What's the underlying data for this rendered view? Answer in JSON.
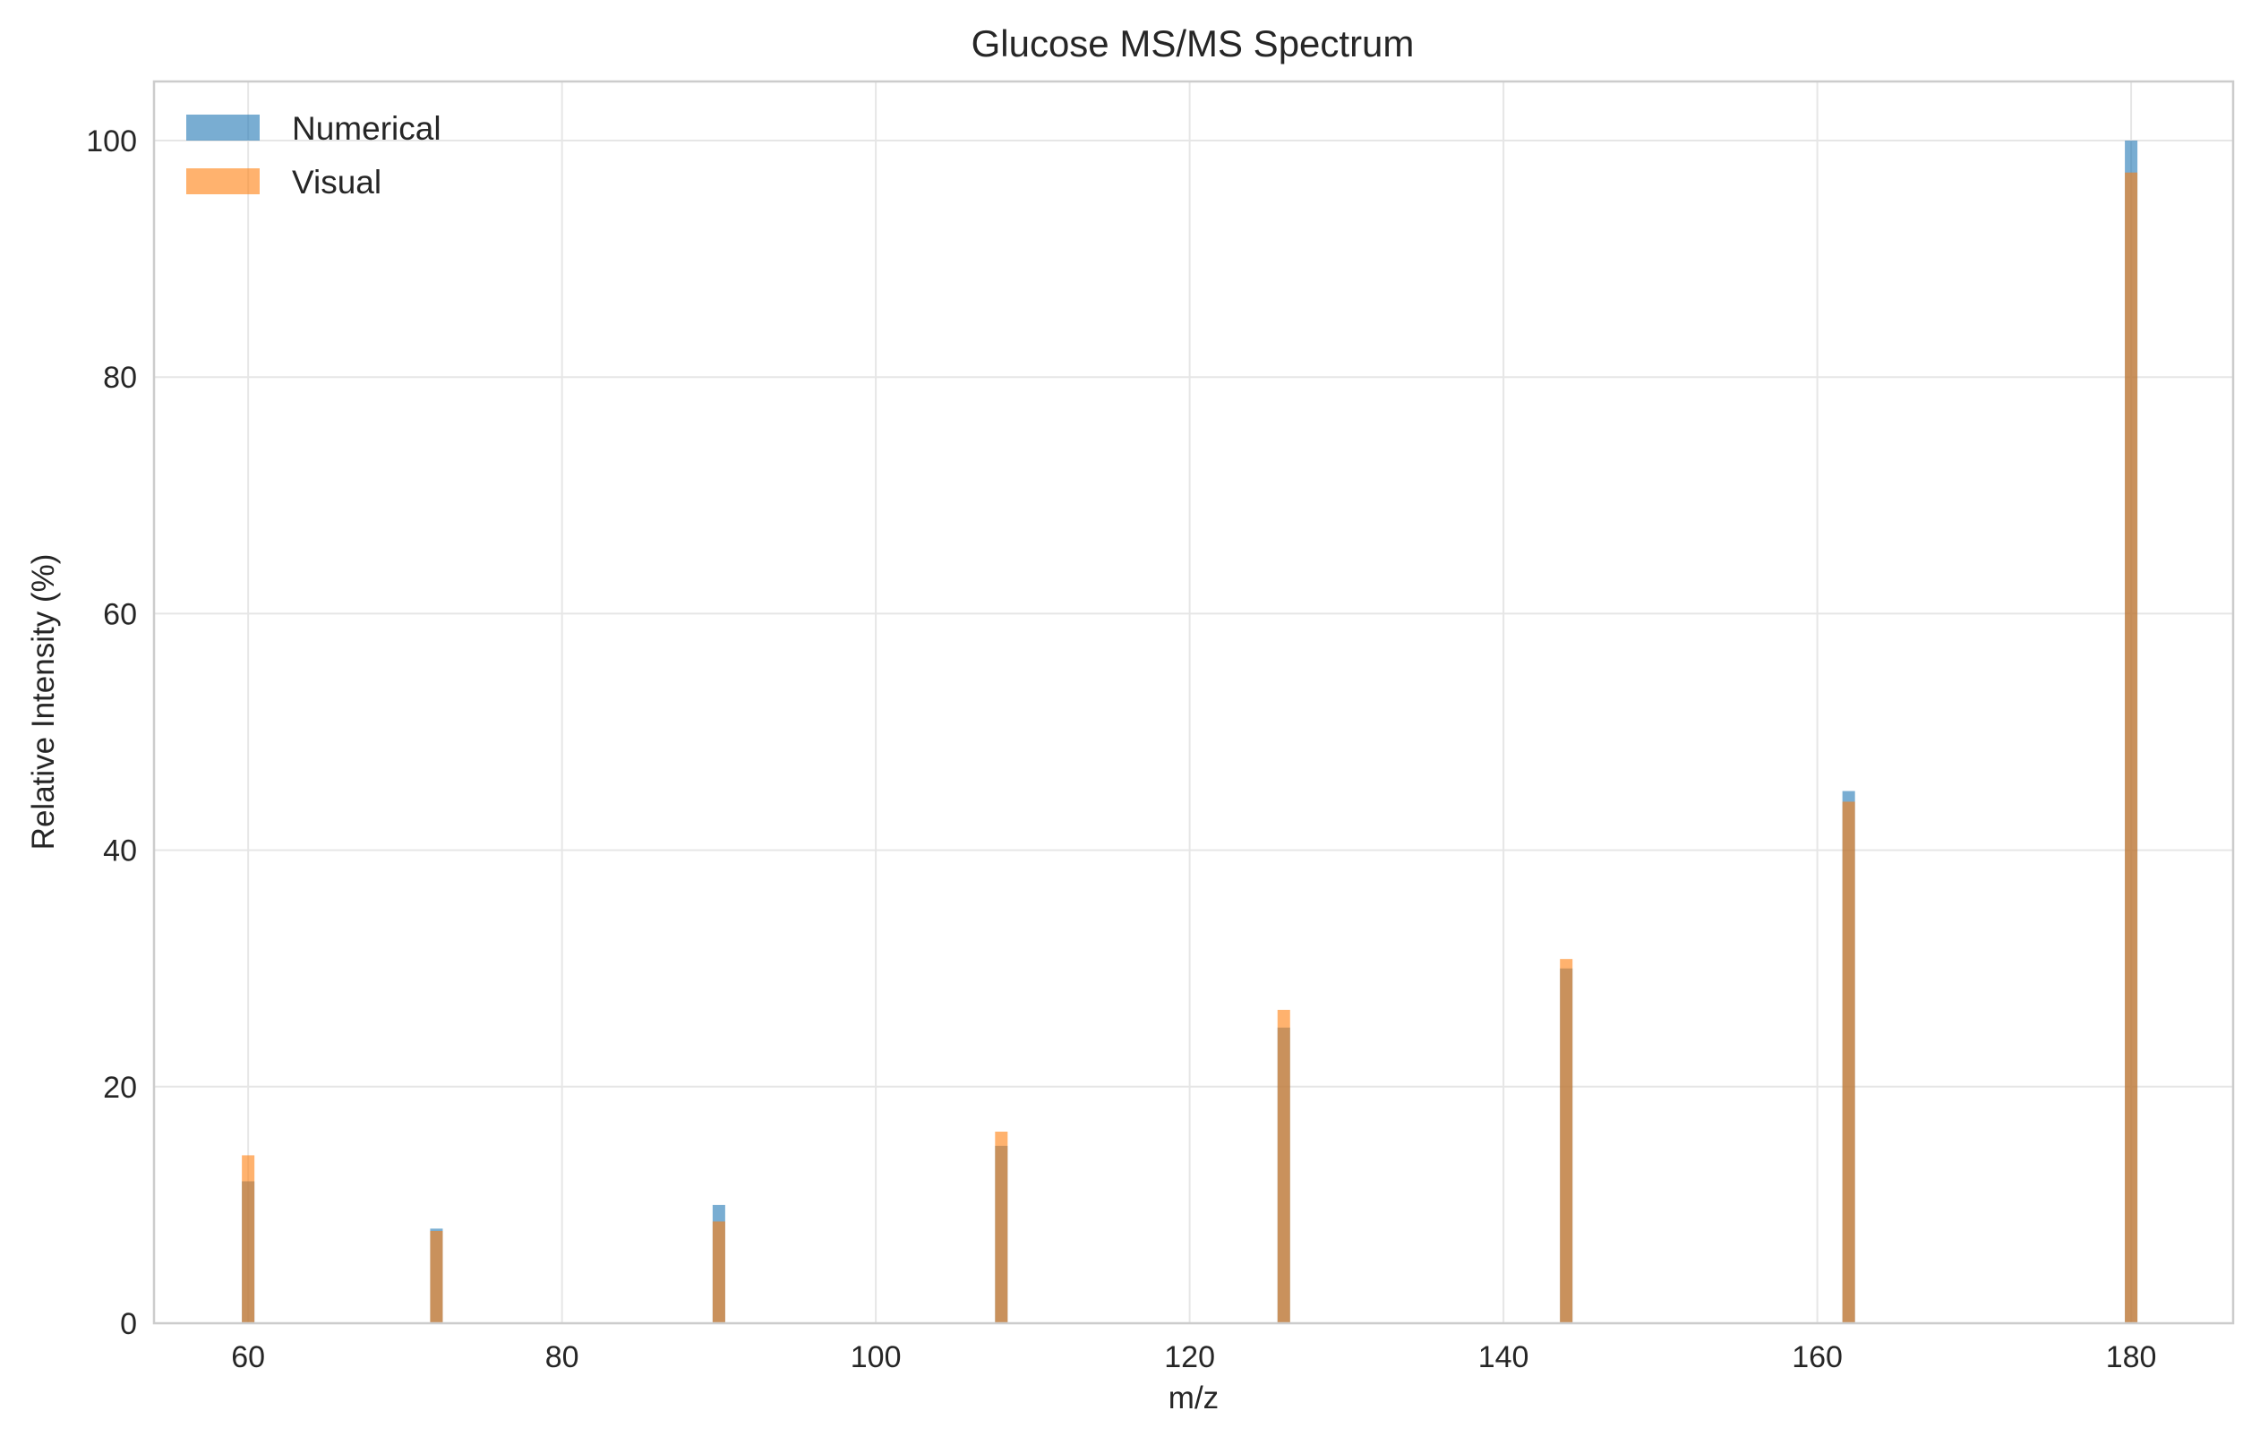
{
  "chart_data": {
    "type": "bar",
    "title": "Glucose MS/MS Spectrum",
    "xlabel": "m/z",
    "ylabel": "Relative Intensity (%)",
    "xlim": [
      54,
      186.5
    ],
    "ylim": [
      0,
      105
    ],
    "xticks": [
      60,
      80,
      100,
      120,
      140,
      160,
      180
    ],
    "yticks": [
      0,
      20,
      40,
      60,
      80,
      100
    ],
    "grid": true,
    "legend_position": "upper-left",
    "x": [
      60,
      72,
      90,
      108,
      126,
      144,
      162,
      180
    ],
    "series": [
      {
        "name": "Numerical",
        "color": "#1f77b4",
        "opacity": 0.6,
        "values": [
          12,
          8,
          10,
          15,
          25,
          30,
          45,
          100
        ]
      },
      {
        "name": "Visual",
        "color": "#ff7f0e",
        "opacity": 0.6,
        "values": [
          14.2,
          7.8,
          8.6,
          16.2,
          26.5,
          30.8,
          44.1,
          97.3
        ]
      }
    ]
  }
}
